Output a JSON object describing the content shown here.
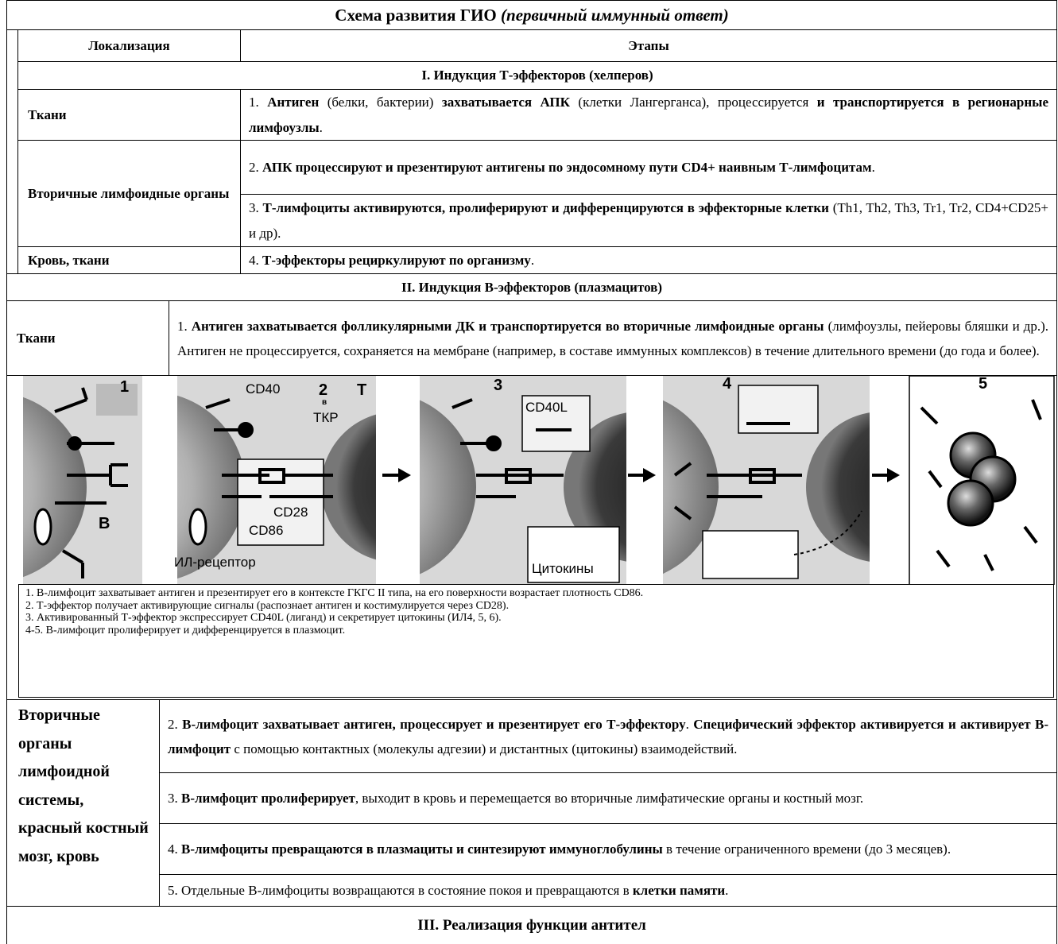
{
  "title": {
    "text": "Схема развития ГИО",
    "italic": "(первичный иммунный ответ)"
  },
  "header": {
    "location": "Локализация",
    "stages": "Этапы"
  },
  "section1": {
    "heading": "I. Индукция Т-эффекторов (хелперов)",
    "rows": [
      {
        "location": "Ткани",
        "stages": [
          [
            {
              "text": "1. ",
              "bold": false
            },
            {
              "text": "Антиген",
              "bold": true
            },
            {
              "text": " (белки, бактерии) ",
              "bold": false
            },
            {
              "text": "захватывается АПК",
              "bold": true
            },
            {
              "text": " (клетки Лангерганса), процессируется ",
              "bold": false
            },
            {
              "text": "и транспортируется в регионарные лимфоузлы",
              "bold": true
            },
            {
              "text": ".",
              "bold": false
            }
          ]
        ]
      },
      {
        "location": "Вторичные лимфоидные органы",
        "stages": [
          [
            {
              "text": "2. ",
              "bold": false
            },
            {
              "text": "АПК процессируют и презентируют антигены по эндосомному пути CD4+ наивным Т-лимфоцитам",
              "bold": true
            },
            {
              "text": ".",
              "bold": false
            }
          ],
          [
            {
              "text": "3. ",
              "bold": false
            },
            {
              "text": "Т-лимфоциты активируются, пролиферируют и дифференцируются в эффекторные клетки",
              "bold": true
            },
            {
              "text": " (Th1, Th2, Th3, Tr1, Tr2, CD4+CD25+ и др).",
              "bold": false
            }
          ]
        ]
      },
      {
        "location": "Кровь, ткани",
        "stages": [
          [
            {
              "text": "4. ",
              "bold": false
            },
            {
              "text": "Т-эффекторы рециркулируют по организму",
              "bold": true
            },
            {
              "text": ".",
              "bold": false
            }
          ]
        ]
      }
    ]
  },
  "section2": {
    "heading": "II. Индукция В-эффекторов (плазмацитов)",
    "row": {
      "location": "Ткани",
      "stage": [
        {
          "text": "1. ",
          "bold": false
        },
        {
          "text": "Антиген захватывается фолликулярными ДК и транспортируется во вторичные лимфоидные органы",
          "bold": true
        },
        {
          "text": " (лимфоузлы, пейеровы бляшки и др.). Антиген не процессируется, сохраняется на мембране (например, в составе иммунных комплексов) в течение длительного времени (до года и более).",
          "bold": false
        }
      ]
    },
    "figure": {
      "panel_numbers": [
        "1",
        "2",
        "3",
        "4",
        "5"
      ],
      "labels": [
        "CD40",
        "в",
        "Т",
        "ТКР",
        "CD28",
        "CD86",
        "ИЛ-рецептор",
        "В",
        "CD40L",
        "Цитокины"
      ],
      "caption": [
        "1. В-лимфоцит захватывает антиген и презентирует его в контексте ГКГС II типа, на его поверхности возрастает плотность CD86.",
        "2. Т-эффектор получает активирующие сигналы (распознает антиген и костимулируется через CD28).",
        "3. Активированный Т-эффектор экспрессирует CD40L (лиганд) и секретирует цитокины (ИЛ4, 5, 6).",
        "4-5. В-лимфоцит пролиферирует и дифференцируется в плазмоцит."
      ]
    },
    "rows": [
      {
        "location": "Вторичные органы лимфоидной системы, красный костный мозг, кровь",
        "stages": [
          [
            {
              "text": "2. ",
              "bold": false
            },
            {
              "text": "В-лимфоцит захватывает антиген, процессирует и презентирует его Т-эффектору",
              "bold": true
            },
            {
              "text": ". ",
              "bold": false
            },
            {
              "text": "Специфический эффектор активируется и активирует В-лимфоцит",
              "bold": true
            },
            {
              "text": " с помощью контактных (молекулы адгезии) и дистантных (цитокины) взаимодействий.",
              "bold": false
            }
          ],
          [
            {
              "text": "3. ",
              "bold": false
            },
            {
              "text": "В-лимфоцит пролиферирует",
              "bold": true
            },
            {
              "text": ", выходит в кровь и перемещается во вторичные лимфатические органы и костный мозг.",
              "bold": false
            }
          ],
          [
            {
              "text": "4. ",
              "bold": false
            },
            {
              "text": "В-лимфоциты превращаются в плазмациты и синтезируют иммуноглобулины",
              "bold": true
            },
            {
              "text": " в течение ограниченного времени (до 3 месяцев).",
              "bold": false
            }
          ],
          [
            {
              "text": "5. Отдельные В-лимфоциты возвращаются в состояние покоя и превращаются в ",
              "bold": false
            },
            {
              "text": "клетки памяти",
              "bold": true
            },
            {
              "text": ".",
              "bold": false
            }
          ]
        ]
      }
    ]
  },
  "section3": {
    "heading": "III. Реализация функции антител"
  }
}
